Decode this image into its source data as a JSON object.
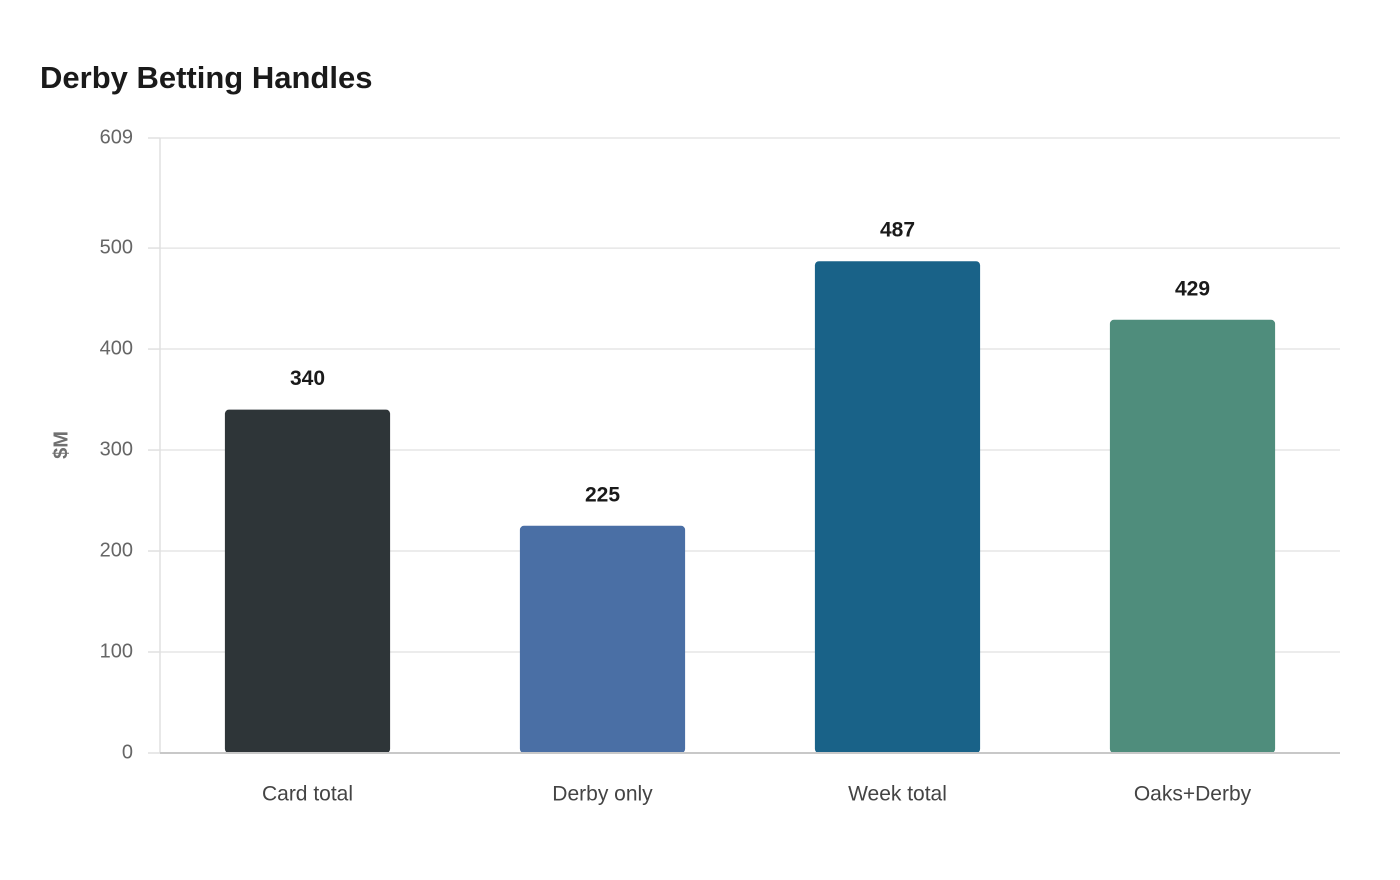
{
  "chart_data": {
    "type": "bar",
    "title": "Derby Betting Handles",
    "y_label": "$M",
    "categories": [
      "Card total",
      "Derby only",
      "Week total",
      "Oaks+Derby"
    ],
    "values": [
      340,
      225,
      487,
      429
    ],
    "colors": [
      "#2e3538",
      "#4a6fa5",
      "#196288",
      "#4f8d7c"
    ],
    "ylim": [
      0,
      609
    ],
    "yticks": [
      0,
      100,
      200,
      300,
      400,
      500,
      609
    ],
    "grid": true
  }
}
